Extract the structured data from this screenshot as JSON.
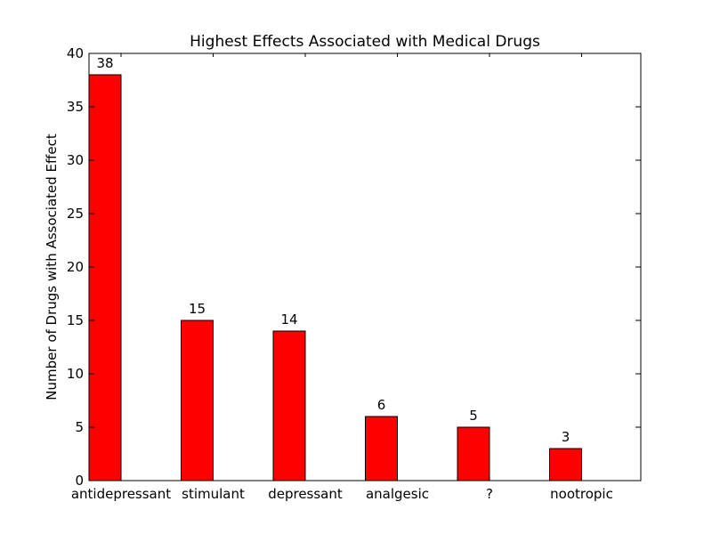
{
  "chart_data": {
    "type": "bar",
    "title": "Highest Effects Associated with Medical Drugs",
    "xlabel": "",
    "ylabel": "Number of Drugs with Associated Effect",
    "categories": [
      "antidepressant",
      "stimulant",
      "depressant",
      "analgesic",
      "?",
      "nootropic"
    ],
    "values": [
      38,
      15,
      14,
      6,
      5,
      3
    ],
    "ylim": [
      0,
      40
    ],
    "yticks": [
      "0",
      "5",
      "10",
      "15",
      "20",
      "25",
      "30",
      "35",
      "40"
    ],
    "bar_color": "#ff0000",
    "edge_color": "#000000",
    "grid": false
  }
}
